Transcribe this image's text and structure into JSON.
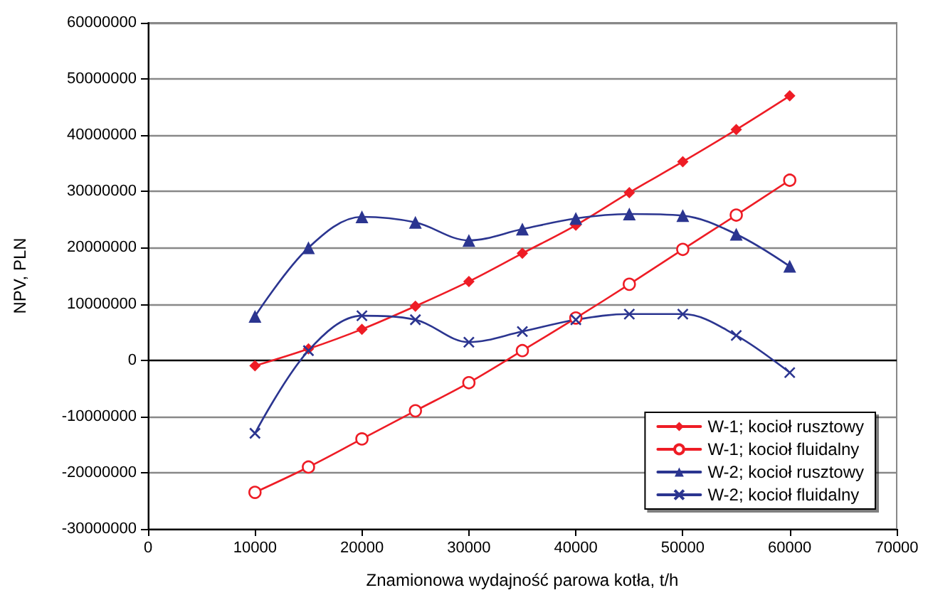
{
  "chart_data": {
    "type": "line",
    "xlabel": "Znamionowa wydajność parowa kotła, t/h",
    "ylabel": "NPV, PLN",
    "x": [
      10000,
      15000,
      20000,
      25000,
      30000,
      35000,
      40000,
      45000,
      50000,
      55000,
      60000
    ],
    "series": [
      {
        "name": "W-1; kocioł rusztowy",
        "color": "#ee1c25",
        "marker": "diamond",
        "values": [
          -1000000,
          2000000,
          5500000,
          9600000,
          14000000,
          19000000,
          24000000,
          29800000,
          35300000,
          41000000,
          47000000
        ]
      },
      {
        "name": "W-1; kocioł fluidalny",
        "color": "#ee1c25",
        "marker": "circle",
        "values": [
          -23500000,
          -19000000,
          -14000000,
          -9000000,
          -4000000,
          1700000,
          7500000,
          13500000,
          19700000,
          25800000,
          32000000
        ]
      },
      {
        "name": "W-2; kocioł rusztowy",
        "color": "#2b3590",
        "marker": "triangle",
        "values": [
          7800000,
          20000000,
          25500000,
          24500000,
          21300000,
          23300000,
          25200000,
          26000000,
          25700000,
          22400000,
          16700000
        ]
      },
      {
        "name": "W-2; kocioł fluidalny",
        "color": "#2b3590",
        "marker": "cross",
        "values": [
          -13000000,
          1700000,
          7900000,
          7200000,
          3200000,
          5100000,
          7200000,
          8200000,
          8200000,
          4400000,
          -2200000
        ]
      }
    ],
    "xlim": [
      0,
      70000
    ],
    "xticks": [
      0,
      10000,
      20000,
      30000,
      40000,
      50000,
      60000,
      70000
    ],
    "ylim": [
      -30000000,
      60000000
    ],
    "yticks": [
      -30000000,
      -20000000,
      -10000000,
      0,
      10000000,
      20000000,
      30000000,
      40000000,
      50000000,
      60000000
    ],
    "grid": "y",
    "legend": "bottom right"
  }
}
